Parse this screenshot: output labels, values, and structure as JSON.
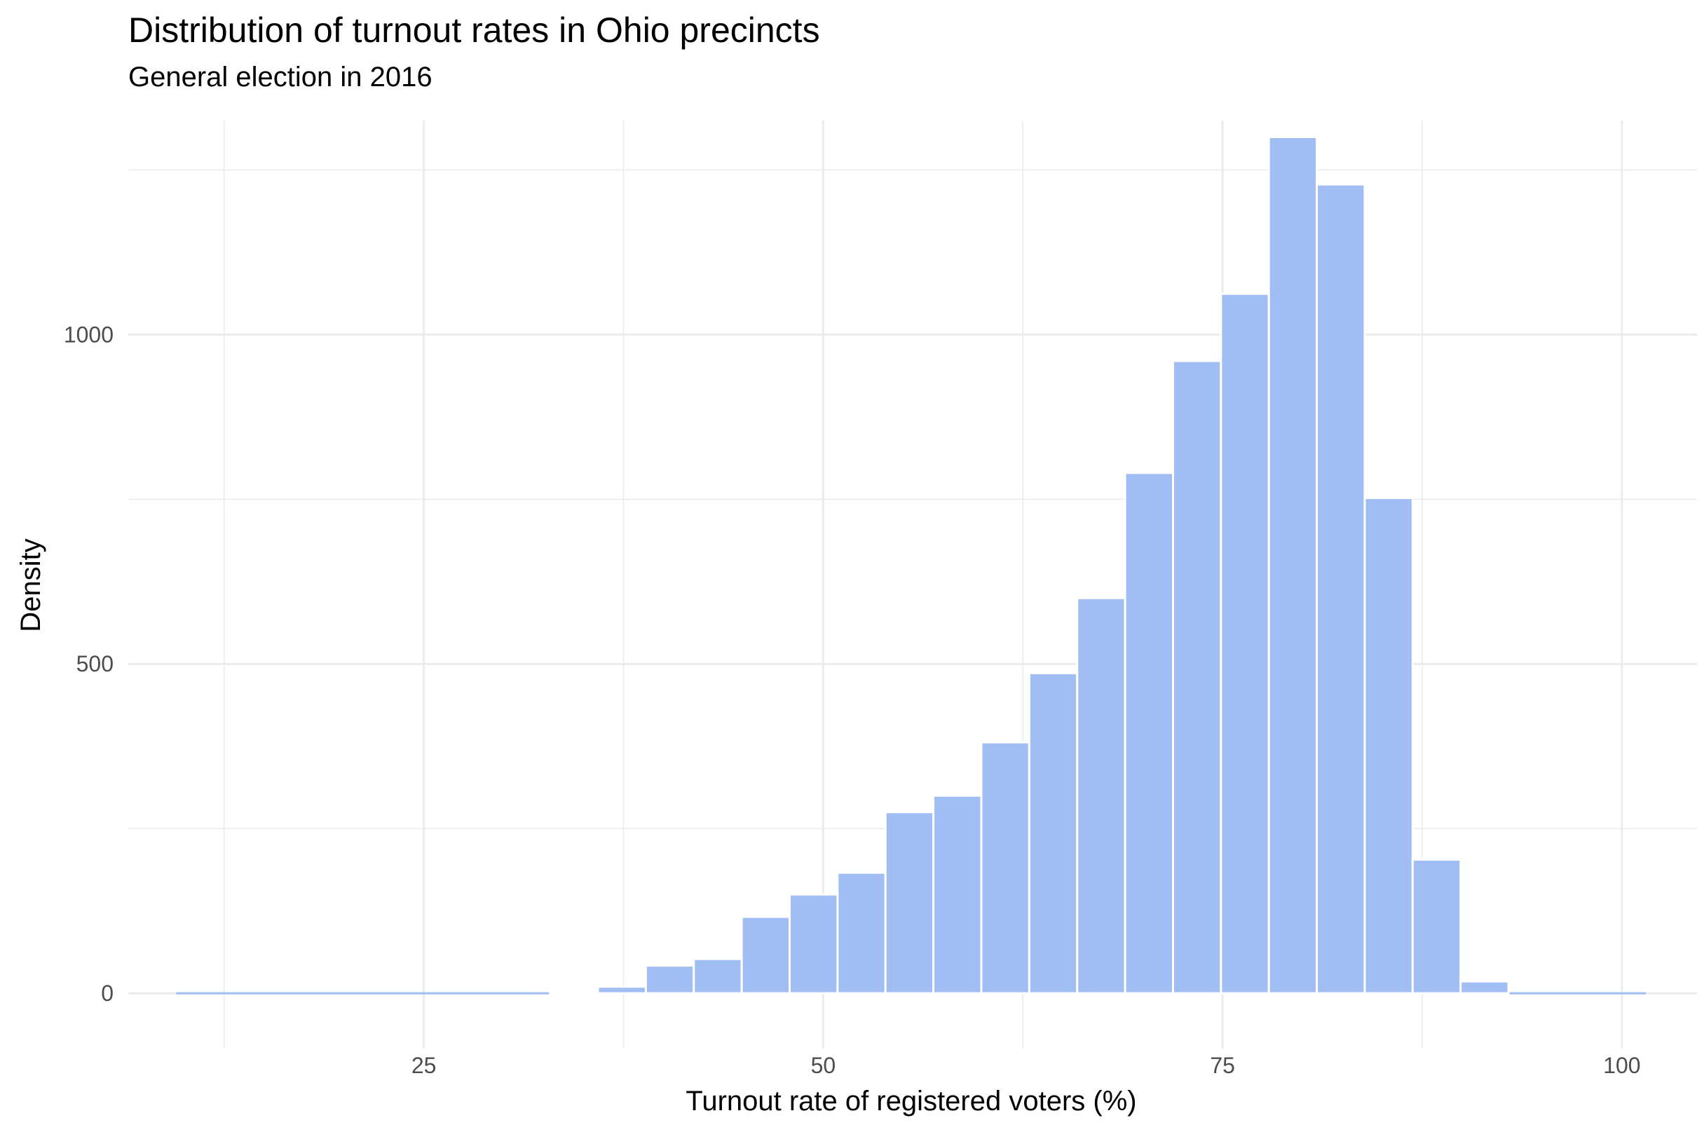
{
  "chart_data": {
    "type": "bar",
    "title": "Distribution of turnout rates in Ohio precincts",
    "subtitle": "General election in 2016",
    "xlabel": "Turnout rate of registered voters (%)",
    "ylabel": "Density",
    "xlim": [
      6.5,
      104.7
    ],
    "ylim": [
      -84,
      1325
    ],
    "x_ticks": [
      25,
      50,
      75,
      100
    ],
    "x_tick_labels": [
      "25",
      "50",
      "75",
      "100"
    ],
    "y_ticks": [
      0,
      500,
      1000
    ],
    "y_tick_labels": [
      "0",
      "500",
      "1000"
    ],
    "grid": true,
    "bin_width": 3,
    "bin_start": 9.5,
    "bin_end": 101.5,
    "bins": [
      {
        "x0": 32.9,
        "x1": 35.9,
        "value": 2
      },
      {
        "x0": 35.9,
        "x1": 38.9,
        "value": 10
      },
      {
        "x0": 38.9,
        "x1": 41.9,
        "value": 42
      },
      {
        "x0": 41.9,
        "x1": 44.9,
        "value": 52
      },
      {
        "x0": 44.9,
        "x1": 47.9,
        "value": 116
      },
      {
        "x0": 47.9,
        "x1": 50.9,
        "value": 150
      },
      {
        "x0": 50.9,
        "x1": 53.9,
        "value": 183
      },
      {
        "x0": 53.9,
        "x1": 56.9,
        "value": 275
      },
      {
        "x0": 56.9,
        "x1": 59.9,
        "value": 300
      },
      {
        "x0": 59.9,
        "x1": 62.9,
        "value": 381
      },
      {
        "x0": 62.9,
        "x1": 65.9,
        "value": 486
      },
      {
        "x0": 65.9,
        "x1": 68.9,
        "value": 600
      },
      {
        "x0": 68.9,
        "x1": 71.9,
        "value": 790
      },
      {
        "x0": 71.9,
        "x1": 74.9,
        "value": 960
      },
      {
        "x0": 74.9,
        "x1": 77.9,
        "value": 1062
      },
      {
        "x0": 77.9,
        "x1": 80.9,
        "value": 1300
      },
      {
        "x0": 80.9,
        "x1": 83.9,
        "value": 1228
      },
      {
        "x0": 83.9,
        "x1": 86.9,
        "value": 752
      },
      {
        "x0": 86.9,
        "x1": 89.9,
        "value": 203
      },
      {
        "x0": 89.9,
        "x1": 92.9,
        "value": 18
      }
    ],
    "bar_color": "#a0bef3",
    "grid_color": "#ebebeb"
  }
}
